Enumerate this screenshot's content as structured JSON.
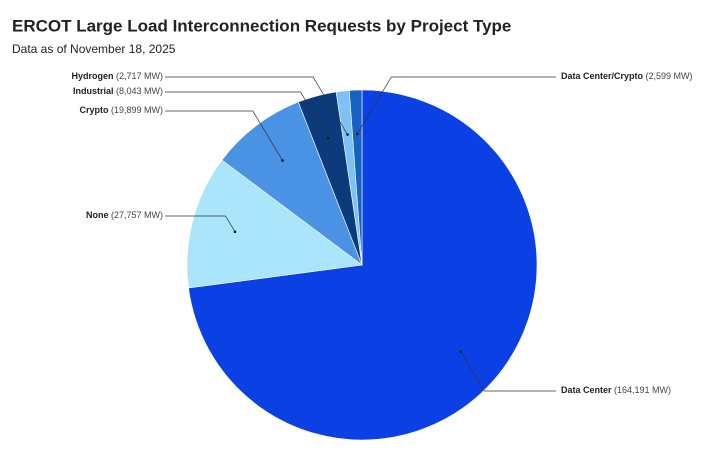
{
  "chart_data": {
    "type": "pie",
    "title": "ERCOT Large Load Interconnection Requests by Project Type",
    "subtitle": "Data as of November 18, 2025",
    "categories": [
      "Data Center",
      "None",
      "Crypto",
      "Industrial",
      "Hydrogen",
      "Data Center/Crypto"
    ],
    "values": [
      164191,
      27757,
      19899,
      8043,
      2717,
      2599
    ],
    "value_labels": [
      "(164,191 MW)",
      "(27,757 MW)",
      "(19,899 MW)",
      "(8,043 MW)",
      "(2,717 MW)",
      "(2,599 MW)"
    ],
    "colors": [
      "#0b41e4",
      "#aae5fc",
      "#4a92e3",
      "#0c3b7c",
      "#7dc2f6",
      "#1462c4"
    ]
  }
}
